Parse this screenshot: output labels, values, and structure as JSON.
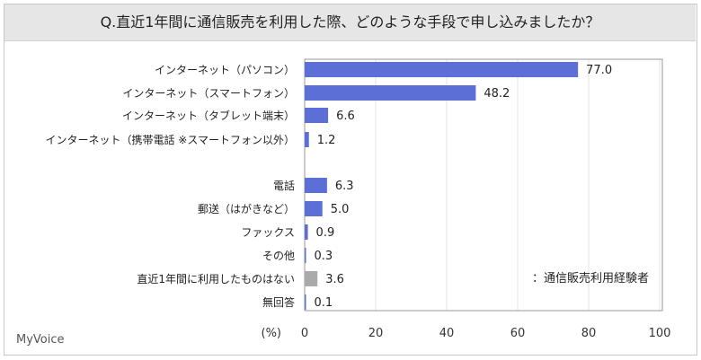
{
  "chart_data": {
    "type": "bar",
    "orientation": "horizontal",
    "title": "Q.直近1年間に通信販売を利用した際、どのような手段で申し込みましたか？",
    "categories": [
      "インターネット（パソコン）",
      "インターネット（スマートフォン）",
      "インターネット（タブレット端末）",
      "インターネット（携帯電話 ※スマートフォン以外）",
      "電話",
      "郵送（はがきなど）",
      "ファックス",
      "その他",
      "直近1年間に利用したものはない",
      "無回答"
    ],
    "values": [
      77.0,
      48.2,
      6.6,
      1.2,
      6.3,
      5.0,
      0.9,
      0.3,
      3.6,
      0.1
    ],
    "value_labels": [
      "77.0",
      "48.2",
      "6.6",
      "1.2",
      "6.3",
      "5.0",
      "0.9",
      "0.3",
      "3.6",
      "0.1"
    ],
    "groups": [
      0,
      0,
      0,
      0,
      1,
      1,
      1,
      1,
      1,
      1
    ],
    "bar_colors": [
      "#5b6fd6",
      "#5b6fd6",
      "#5b6fd6",
      "#5b6fd6",
      "#5b6fd6",
      "#5b6fd6",
      "#5b6fd6",
      "#5b6fd6",
      "#aaaaaa",
      "#5b6fd6"
    ],
    "xlabel": "(%)",
    "xlim": [
      0,
      100
    ],
    "xticks": [
      "0",
      "20",
      "40",
      "60",
      "80",
      "100"
    ],
    "grid": true,
    "annotation": "：通信販売利用経験者",
    "logo": "MyVoice"
  }
}
